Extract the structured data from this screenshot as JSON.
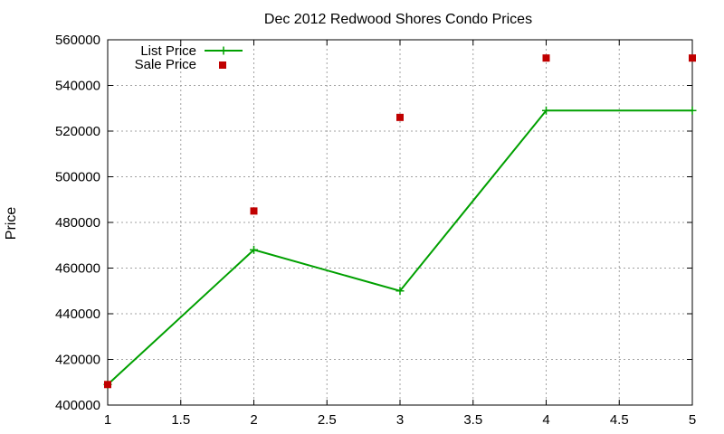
{
  "chart_data": {
    "type": "line",
    "title": "Dec 2012 Redwood Shores Condo Prices",
    "xlabel": "",
    "ylabel": "Price",
    "xlim": [
      1,
      5
    ],
    "ylim": [
      400000,
      560000
    ],
    "xticks": [
      "1",
      "1.5",
      "2",
      "2.5",
      "3",
      "3.5",
      "4",
      "4.5",
      "5"
    ],
    "yticks": [
      "400000",
      "420000",
      "440000",
      "460000",
      "480000",
      "500000",
      "520000",
      "540000",
      "560000"
    ],
    "grid": true,
    "legend_position": "top-left",
    "series": [
      {
        "name": "List Price",
        "style": "line-with-plus-markers",
        "color": "#00a000",
        "x": [
          1,
          2,
          3,
          4,
          5
        ],
        "y": [
          409000,
          468000,
          450000,
          529000,
          529000
        ]
      },
      {
        "name": "Sale Price",
        "style": "square-markers",
        "color": "#c00000",
        "x": [
          1,
          2,
          3,
          4,
          5
        ],
        "y": [
          409000,
          485000,
          526000,
          552000,
          552000
        ]
      }
    ]
  }
}
